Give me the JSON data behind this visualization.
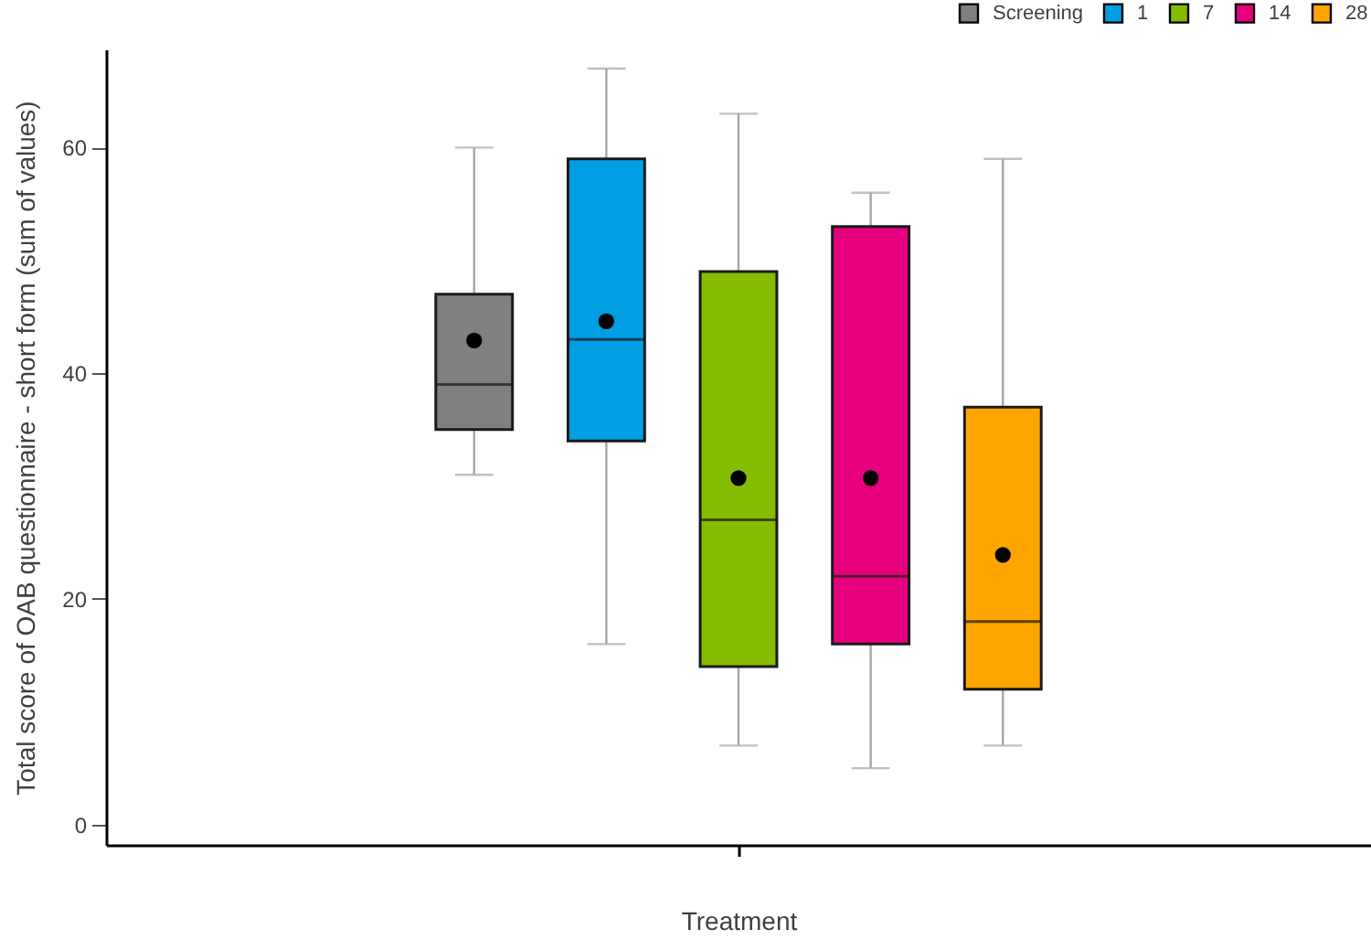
{
  "chart_data": {
    "type": "box",
    "xlabel": "Treatment",
    "ylabel": "Total score of OAB questionnaire - short form (sum of values)",
    "categories": [
      null
    ],
    "ylim": [
      -1.8,
      68.7
    ],
    "yticks": [
      0,
      20,
      40,
      60
    ],
    "legend": "top right",
    "marker": "circle",
    "series": [
      {
        "name": "Screening",
        "color": "#808080",
        "boxes": [
          {
            "low": 31,
            "q1": 35,
            "median": 39,
            "q3": 47,
            "high": 60,
            "mean": 42.9
          }
        ]
      },
      {
        "name": "1",
        "color": "#009fe3",
        "boxes": [
          {
            "low": 16,
            "q1": 34,
            "median": 43,
            "q3": 59,
            "high": 67,
            "mean": 44.6
          }
        ]
      },
      {
        "name": "7",
        "color": "#84bd00",
        "boxes": [
          {
            "low": 7,
            "q1": 14,
            "median": 27,
            "q3": 49,
            "high": 63,
            "mean": 30.7
          }
        ]
      },
      {
        "name": "14",
        "color": "#e6007e",
        "boxes": [
          {
            "low": 5,
            "q1": 16,
            "median": 22,
            "q3": 53,
            "high": 56,
            "mean": 30.7
          }
        ]
      },
      {
        "name": "28",
        "color": "#ffa500",
        "boxes": [
          {
            "low": 7,
            "q1": 12,
            "median": 18,
            "q3": 37,
            "high": 59,
            "mean": 23.9
          }
        ]
      }
    ]
  }
}
